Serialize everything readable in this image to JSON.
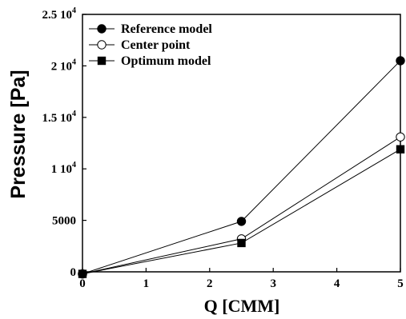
{
  "chart_data": {
    "type": "line",
    "xlabel": "Q [CMM]",
    "ylabel": "Pressure [Pa]",
    "xlim": [
      0,
      5
    ],
    "ylim": [
      0,
      25000
    ],
    "x_ticks": [
      {
        "value": 0,
        "label": "0"
      },
      {
        "value": 1,
        "label": "1"
      },
      {
        "value": 2,
        "label": "2"
      },
      {
        "value": 3,
        "label": "3"
      },
      {
        "value": 4,
        "label": "4"
      },
      {
        "value": 5,
        "label": "5"
      }
    ],
    "y_ticks": [
      {
        "value": 0,
        "mantissa": "0",
        "exponent": ""
      },
      {
        "value": 5000,
        "mantissa": "5000",
        "exponent": ""
      },
      {
        "value": 10000,
        "mantissa": "1 10",
        "exponent": "4"
      },
      {
        "value": 15000,
        "mantissa": "1.5 10",
        "exponent": "4"
      },
      {
        "value": 20000,
        "mantissa": "2 10",
        "exponent": "4"
      },
      {
        "value": 25000,
        "mantissa": "2.5 10",
        "exponent": "4"
      }
    ],
    "grid": false,
    "legend_position": "top-left",
    "series": [
      {
        "name": "Reference model",
        "marker": "filled-circle",
        "x": [
          0,
          2.5,
          5
        ],
        "y": [
          -200,
          4900,
          20500
        ]
      },
      {
        "name": "Center point",
        "marker": "open-circle",
        "x": [
          0,
          2.5,
          5
        ],
        "y": [
          -200,
          3200,
          13100
        ]
      },
      {
        "name": "Optimum model",
        "marker": "filled-square",
        "x": [
          0,
          2.5,
          5
        ],
        "y": [
          -200,
          2800,
          11900
        ]
      }
    ]
  }
}
